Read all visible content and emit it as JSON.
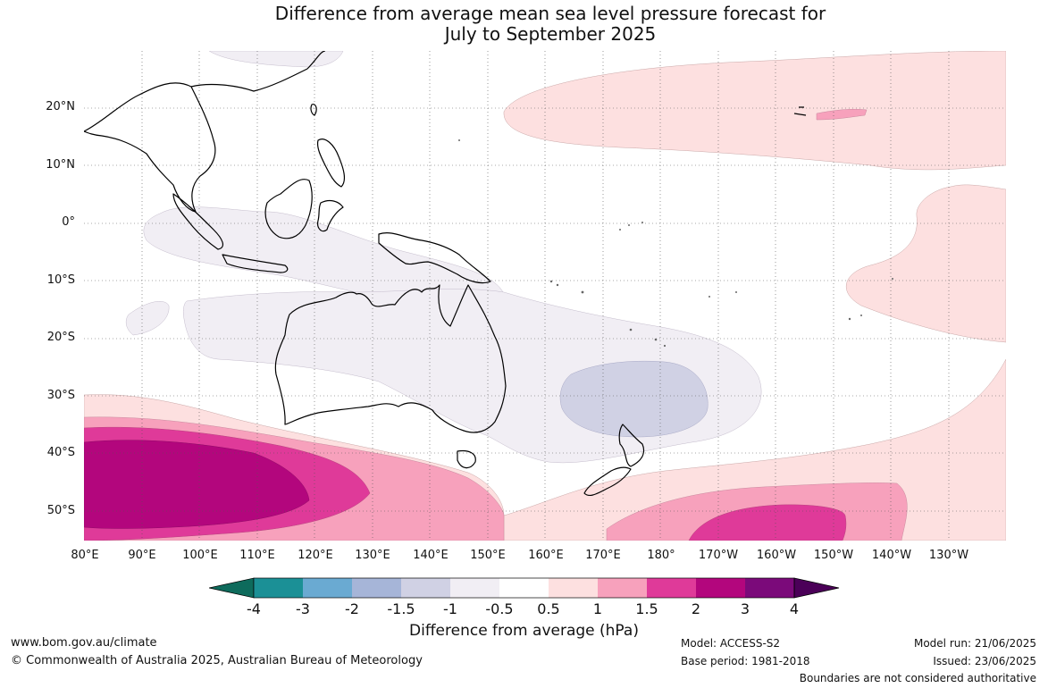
{
  "title": {
    "line1": "Difference from average mean sea level pressure forecast for",
    "line2": "July to September 2025"
  },
  "map": {
    "region": "Australia, Maritime Continent and South-West Pacific",
    "latitude_labels": [
      "20°N",
      "10°N",
      "0°",
      "10°S",
      "20°S",
      "30°S",
      "40°S",
      "50°S"
    ],
    "longitude_labels": [
      "80°E",
      "90°E",
      "100°E",
      "110°E",
      "120°E",
      "130°E",
      "140°E",
      "150°E",
      "160°E",
      "170°E",
      "180°",
      "170°W",
      "160°W",
      "150°W",
      "140°W",
      "130°W"
    ],
    "anomaly_areas": [
      {
        "level": "0.5 to 1",
        "area": "North-central Pacific, 10°N to 25°N, 165°E to 130°W"
      },
      {
        "level": "1 to 1.5",
        "area": "small area near Hawaii, about 20°N 155°W"
      },
      {
        "level": "0.5 to 1",
        "area": "Eastern tropical Pacific, 15°S to 5°N, east of 150°W"
      },
      {
        "level": "-0.5 to -1",
        "area": "Indian Ocean near equator and over Australia, Coral Sea and Tasman Sea"
      },
      {
        "level": "-1 to -1.5",
        "area": "Tasman Sea, 27°S to 36°S, 163°E to 175°E"
      },
      {
        "level": "0.5 to 3",
        "area": "Southern Indian Ocean, 30°S to 55°S, 80°E to 150°E (maximum 2 to 3 near 90°E)"
      },
      {
        "level": "0.5 to 2",
        "area": "Southern Pacific Ocean, 35°S to 55°S, 160°E to 130°W"
      }
    ]
  },
  "colorbar": {
    "ticks": [
      "-4",
      "-3",
      "-2",
      "-1.5",
      "-1",
      "-0.5",
      "0.5",
      "1",
      "1.5",
      "2",
      "3",
      "4"
    ],
    "colors": [
      "#0e6b5c",
      "#1b9096",
      "#6aaad2",
      "#a6b5d8",
      "#d0d1e4",
      "#f1eef4",
      "#ffffff",
      "#fde0e0",
      "#f7a1bc",
      "#df3a99",
      "#b3067d",
      "#7b0a7a",
      "#4b0058"
    ],
    "label": "Difference from average (hPa)"
  },
  "footer": {
    "website": "www.bom.gov.au/climate",
    "copyright": "© Commonwealth of Australia 2025, Australian Bureau of Meteorology",
    "model": "Model: ACCESS-S2",
    "base_period": "Base period: 1981-2018",
    "model_run": "Model run: 21/06/2025",
    "issued": "Issued: 23/06/2025",
    "disclaimer": "Boundaries are not considered authoritative"
  }
}
